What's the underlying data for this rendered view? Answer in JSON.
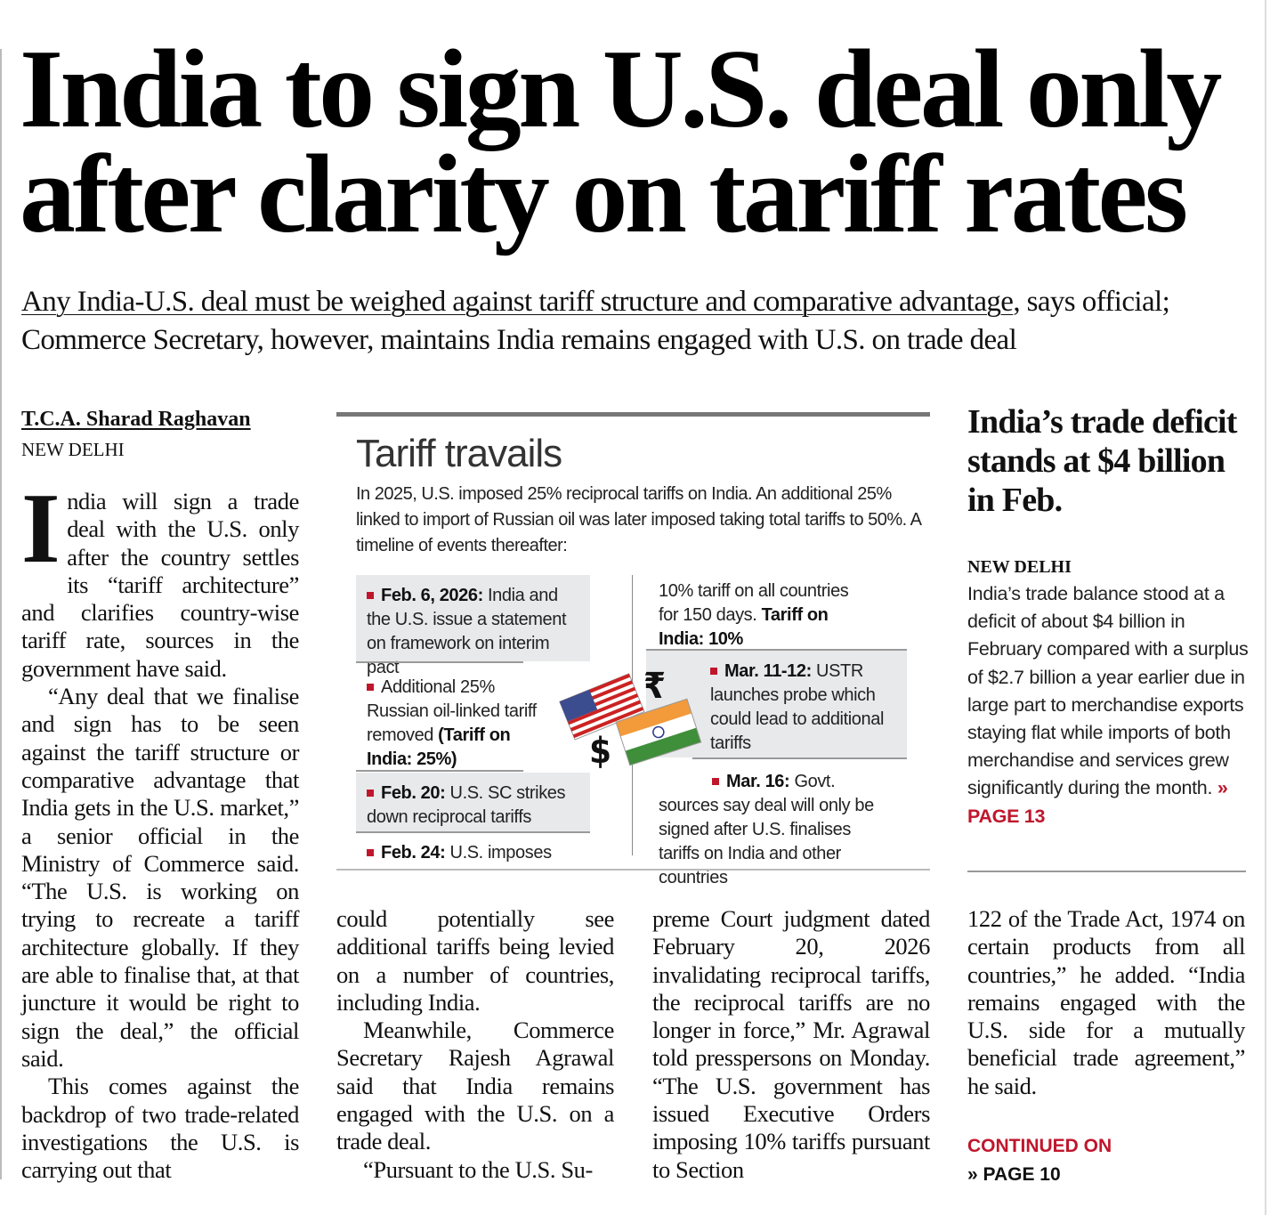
{
  "headline": {
    "line1": "India to sign U.S. deal only",
    "line2": "after clarity on tariff rates"
  },
  "dek": {
    "underlined": "Any India-U.S. deal must be weighed against tariff structure and comparative advantage",
    "rest": ", says official; Commerce Secretary, however, maintains India remains engaged with U.S. on trade deal"
  },
  "article": {
    "byline": "T.C.A. Sharad Raghavan",
    "dateline": "NEW DELHI",
    "dropcap": "I",
    "col1": {
      "p1": "ndia will sign a trade deal with the U.S. only after the country settles its “tariff architecture” and clarifies country-wise tariff rate, sources in the government have said.",
      "p2": "“Any deal that we finalise and sign has to be seen against the tariff structure or comparative advantage that India gets in the U.S. market,” a senior official in the Ministry of Commerce said. “The U.S. is working on trying to recreate a tariff architecture globally. If they are able to finalise that, at that juncture it would be right to sign the deal,” the official said.",
      "p3": "This comes against the backdrop of two trade-related investigations the U.S. is carrying out that"
    },
    "col2": {
      "p1": "could potentially see additional tariffs being levied on a number of countries, including India.",
      "p2": "Meanwhile, Commerce Secretary Rajesh Agrawal said that India remains engaged with the U.S. on a trade deal.",
      "p3": "“Pursuant to the U.S. Su-"
    },
    "col3": {
      "p1": "preme Court judgment dated February 20, 2026 invalidating reciprocal tariffs, the reciprocal tariffs are no longer in force,” Mr. Agrawal told presspersons on Monday. “The U.S. government has issued Executive Orders imposing 10% tariffs pursuant to Section"
    },
    "col4": {
      "p1": "122 of the Trade Act, 1974 on certain products from all countries,” he added. “India remains engaged with the U.S. side for a mutually beneficial trade agreement,” he said.",
      "continued": "CONTINUED ON",
      "page": "» PAGE 10"
    }
  },
  "infographic": {
    "title": "Tariff travails",
    "intro": "In 2025, U.S. imposed 25% reciprocal tariffs on India. An additional 25% linked to import of Russian oil was later imposed taking total tariffs to 50%. A timeline of events thereafter:",
    "events": [
      {
        "date": "Feb. 6, 2026:",
        "text": " India and the U.S. issue a statement on framework on interim pact"
      },
      {
        "date": "",
        "text": "Additional 25% Russian oil-linked tariff removed ",
        "bold": "(Tariff on India: 25%)"
      },
      {
        "date": "Feb. 20:",
        "text": " U.S. SC strikes down reciprocal tariffs"
      },
      {
        "date": "Feb. 24:",
        "text": " U.S. imposes"
      },
      {
        "date": "",
        "text": "10% tariff on all countries for 150 days. ",
        "bold": "Tariff on India: 10%"
      },
      {
        "date": "Mar. 11-12:",
        "text": " USTR launches probe which could lead to additional tariffs"
      },
      {
        "date": "Mar. 16:",
        "text": " Govt. sources say deal will only be signed after U.S. finalises tariffs on India and other countries"
      }
    ],
    "symbols": {
      "rupee": "₹",
      "dollar": "$"
    },
    "accent": "#c0162c"
  },
  "sidebar": {
    "headline": "India’s trade deficit stands at $4 billion in Feb.",
    "dateline": "NEW DELHI",
    "body": "India’s trade balance stood at a deficit of about $4 billion in February compared with a surplus of $2.7 billion a year earlier due in large part to merchandise exports staying flat while imports of both merchandise and services grew significantly during the month.",
    "link": "» PAGE 13"
  }
}
